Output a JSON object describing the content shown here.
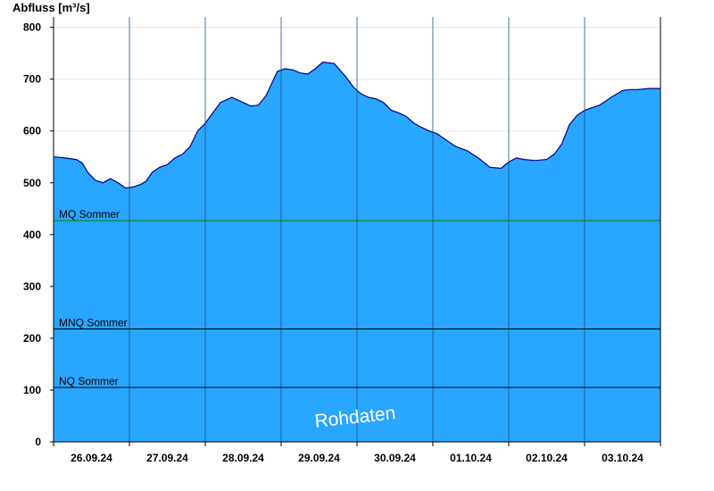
{
  "chart_data": {
    "type": "area",
    "title": "",
    "ylabel": "Abfluss [m³/s]",
    "xlabel": "",
    "ylim": [
      0,
      820
    ],
    "yticks": [
      0,
      100,
      200,
      300,
      400,
      500,
      600,
      700,
      800
    ],
    "xlim": [
      0,
      8
    ],
    "day_labels": [
      "26.09.24",
      "27.09.24",
      "28.09.24",
      "29.09.24",
      "30.09.24",
      "01.10.24",
      "02.10.24",
      "03.10.24"
    ],
    "grid": true,
    "legend": "none",
    "fill_color": "#29a6ff",
    "line_color": "#00007f",
    "ref_lines": [
      {
        "name": "MQ Sommer",
        "value": 427,
        "color": "#008000"
      },
      {
        "name": "MNQ Sommer",
        "value": 218,
        "color": "#000000"
      },
      {
        "name": "NQ Sommer",
        "value": 105,
        "color": "#000000"
      }
    ],
    "watermark": "Rohdaten",
    "series": [
      {
        "x": [
          0,
          0.15,
          0.3,
          0.38,
          0.45,
          0.55,
          0.65,
          0.75,
          0.85,
          0.95,
          1.05,
          1.15,
          1.22,
          1.3,
          1.4,
          1.5,
          1.6,
          1.7,
          1.8,
          1.9,
          2.0,
          2.1,
          2.2,
          2.35,
          2.5,
          2.6,
          2.7,
          2.8,
          2.95,
          3.05,
          3.15,
          3.25,
          3.35,
          3.45,
          3.55,
          3.7,
          3.85,
          3.95,
          4.05,
          4.15,
          4.25,
          4.35,
          4.45,
          4.55,
          4.65,
          4.75,
          4.85,
          4.95,
          5.05,
          5.15,
          5.3,
          5.45,
          5.6,
          5.75,
          5.9,
          6.0,
          6.1,
          6.2,
          6.35,
          6.5,
          6.6,
          6.7,
          6.8,
          6.9,
          7.0,
          7.1,
          7.2,
          7.35,
          7.5,
          7.6,
          7.7,
          7.85,
          8.0
        ],
        "y": [
          550,
          548,
          545,
          538,
          520,
          505,
          500,
          508,
          500,
          490,
          492,
          497,
          503,
          520,
          530,
          535,
          548,
          555,
          570,
          600,
          615,
          635,
          655,
          665,
          655,
          648,
          650,
          668,
          715,
          720,
          718,
          712,
          710,
          720,
          733,
          730,
          705,
          685,
          672,
          665,
          662,
          655,
          640,
          635,
          628,
          615,
          607,
          600,
          595,
          585,
          570,
          562,
          548,
          530,
          528,
          540,
          548,
          545,
          543,
          545,
          555,
          575,
          612,
          630,
          640,
          645,
          650,
          665,
          678,
          680,
          680,
          682,
          682
        ]
      }
    ]
  }
}
